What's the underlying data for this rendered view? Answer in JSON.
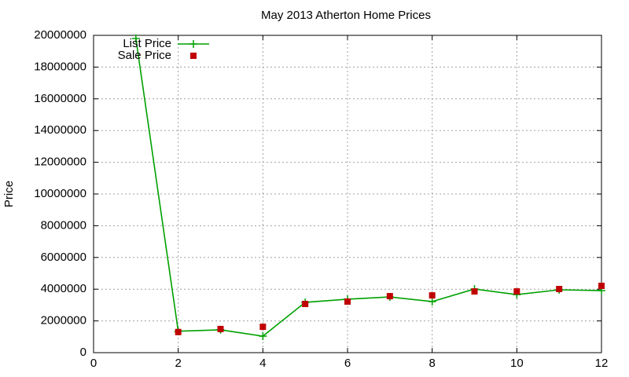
{
  "chart_data": {
    "type": "line",
    "title": "May 2013 Atherton Home Prices",
    "ylabel": "Price",
    "x": [
      1,
      2,
      3,
      4,
      5,
      6,
      7,
      8,
      9,
      10,
      11,
      12
    ],
    "series": [
      {
        "name": "List Price",
        "color": "#00a000",
        "style": "linespoints",
        "marker": "plus",
        "values": [
          19800000,
          1350000,
          1440000,
          1040000,
          3170000,
          3370000,
          3510000,
          3220000,
          4010000,
          3660000,
          3960000,
          3910000
        ]
      },
      {
        "name": "Sale Price",
        "color": "#c00000",
        "style": "points",
        "marker": "square",
        "values": [
          null,
          1300000,
          1490000,
          1630000,
          3070000,
          3220000,
          3560000,
          3610000,
          3860000,
          3860000,
          4010000,
          4210000
        ]
      }
    ],
    "xlim": [
      0,
      12
    ],
    "xticks": [
      0,
      2,
      4,
      6,
      8,
      10,
      12
    ],
    "ylim": [
      0,
      20000000
    ],
    "yticks": [
      0,
      2000000,
      4000000,
      6000000,
      8000000,
      10000000,
      12000000,
      14000000,
      16000000,
      18000000,
      20000000
    ],
    "grid": true,
    "legend": "top-left"
  }
}
